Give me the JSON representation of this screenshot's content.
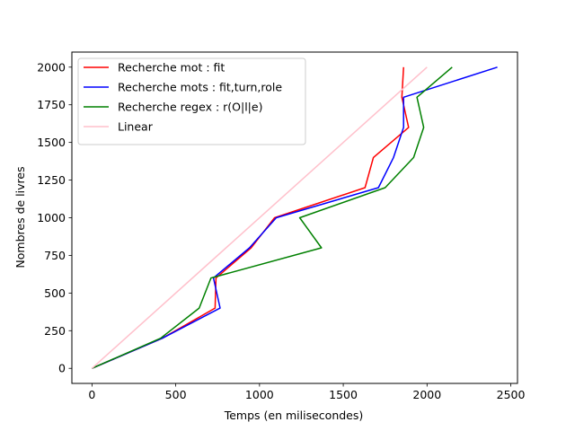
{
  "chart_data": {
    "type": "line",
    "title": "",
    "xlabel": "Temps (en milisecondes)",
    "ylabel": "Nombres de livres",
    "xlim": [
      -120,
      2540
    ],
    "ylim": [
      -100,
      2100
    ],
    "xticks": [
      0,
      500,
      1000,
      1500,
      2000,
      2500
    ],
    "yticks": [
      0,
      250,
      500,
      750,
      1000,
      1250,
      1500,
      1750,
      2000
    ],
    "grid": false,
    "legend_position": "top-left",
    "series": [
      {
        "name": "Recherche mot : fit",
        "color": "#ff0000",
        "points": [
          [
            0,
            0
          ],
          [
            420,
            200
          ],
          [
            735,
            400
          ],
          [
            740,
            600
          ],
          [
            950,
            800
          ],
          [
            1090,
            1000
          ],
          [
            1630,
            1200
          ],
          [
            1680,
            1400
          ],
          [
            1890,
            1600
          ],
          [
            1850,
            1800
          ],
          [
            1860,
            2000
          ]
        ]
      },
      {
        "name": "Recherche mots : fit,turn,role",
        "color": "#0000ff",
        "points": [
          [
            0,
            0
          ],
          [
            420,
            200
          ],
          [
            765,
            400
          ],
          [
            725,
            600
          ],
          [
            940,
            800
          ],
          [
            1100,
            1000
          ],
          [
            1710,
            1200
          ],
          [
            1800,
            1400
          ],
          [
            1860,
            1600
          ],
          [
            1860,
            1800
          ],
          [
            2420,
            2000
          ]
        ]
      },
      {
        "name": "Recherche regex : r(O|l|e)",
        "color": "#008000",
        "points": [
          [
            0,
            0
          ],
          [
            410,
            200
          ],
          [
            640,
            400
          ],
          [
            710,
            600
          ],
          [
            1370,
            800
          ],
          [
            1240,
            1000
          ],
          [
            1750,
            1200
          ],
          [
            1920,
            1400
          ],
          [
            1980,
            1600
          ],
          [
            1940,
            1800
          ],
          [
            2150,
            2000
          ]
        ]
      },
      {
        "name": "Linear",
        "color": "#ffc0cb",
        "points": [
          [
            0,
            0
          ],
          [
            2000,
            2000
          ]
        ]
      }
    ]
  }
}
